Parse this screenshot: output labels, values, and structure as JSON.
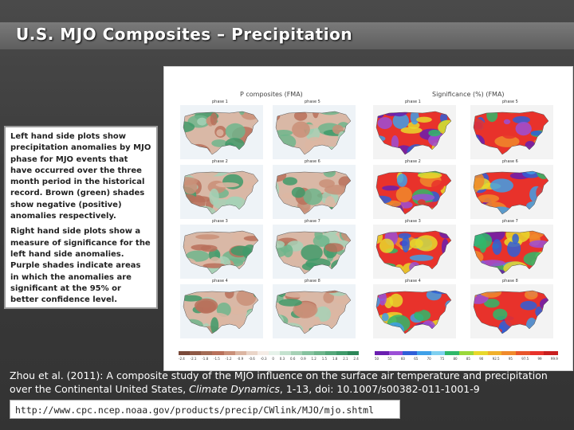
{
  "slide": {
    "title": "U.S. MJO Composites – Precipitation"
  },
  "figure": {
    "left_title": "P composites (FMA)",
    "right_title": "Significance (%) (FMA)",
    "left_phases": [
      "phase 1",
      "phase 5",
      "phase 2",
      "phase 6",
      "phase 3",
      "phase 7",
      "phase 4",
      "phase 8"
    ],
    "right_phases": [
      "phase 1",
      "phase 5",
      "phase 2",
      "phase 6",
      "phase 3",
      "phase 7",
      "phase 4",
      "phase 8"
    ],
    "left_colorbar_ticks": [
      "-2.4",
      "-2.1",
      "-1.8",
      "-1.5",
      "-1.2",
      "-0.9",
      "-0.6",
      "-0.3",
      "0",
      "0.3",
      "0.6",
      "0.9",
      "1.2",
      "1.5",
      "1.8",
      "2.1",
      "2.4"
    ],
    "right_colorbar_ticks": [
      "50",
      "55",
      "60",
      "65",
      "70",
      "75",
      "80",
      "85",
      "90",
      "92.5",
      "95",
      "97.5",
      "99",
      "99.9"
    ],
    "colors": {
      "dry": "#b8705a",
      "wet": "#3f9a6a",
      "sig_low": "#e8322b",
      "sig_high": "#6a1fb0"
    }
  },
  "notes": {
    "left_text": "Left hand side plots show precipitation anomalies by MJO phase for MJO events that have occurred over the three month period in the historical record. Brown (green) shades show negative (positive) anomalies respectively.",
    "right_text": "Right hand side plots show a measure of significance for the left hand side anomalies. Purple shades indicate areas in which the anomalies are significant at the 95% or better confidence level."
  },
  "citation": {
    "authors": "Zhou et al. (2011): A composite study of the MJO influence on the surface air temperature and precipitation over the Continental United States,",
    "journal": "Climate Dynamics",
    "rest": ", 1-13, doi: 10.1007/s00382-011-1001-9"
  },
  "link": {
    "url": "http://www.cpc.ncep.noaa.gov/products/precip/CWlink/MJO/mjo.shtml"
  }
}
